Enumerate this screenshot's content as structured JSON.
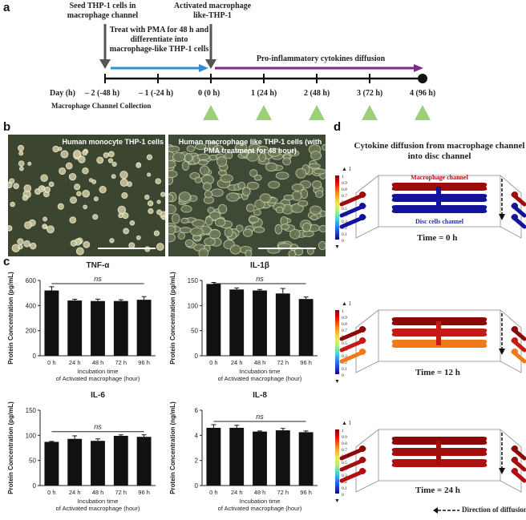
{
  "panels": {
    "a": "a",
    "b": "b",
    "c": "c",
    "d": "d"
  },
  "timeline": {
    "seed_label": "Seed THP-1 cells in macrophage channel",
    "activated_label": "Activated macrophage like-THP-1",
    "pma_label": "Treat with PMA for 48 h and differentiate into macrophage-like THP-1 cells",
    "diffusion_label": "Pro-inflammatory cytokines diffusion",
    "day_axis_label": "Day (h)",
    "ticks": [
      "– 2 (-48 h)",
      "– 1 (-24 h)",
      "0 (0 h)",
      "1 (24 h)",
      "2 (48 h)",
      "3 (72 h)",
      "4 (96 h)"
    ],
    "collection_label": "Macrophage Channel Collection",
    "colors": {
      "pma_arrow": "#2f8fd0",
      "diffusion_arrow": "#7d2a8c",
      "collection_triangle": "#9ccf7a"
    }
  },
  "micrographs": {
    "left_label": "Human monocyte THP-1 cells",
    "right_label": "Human macrophage like THP-1 cells (with PMA treatment for 48 hour)"
  },
  "chart_data": [
    {
      "type": "bar",
      "title": "TNF-α",
      "ylabel": "Protein Concentration (pg/mL)",
      "xlabel": "Incubation time of Activated macrophage (hour)",
      "categories": [
        "0 h",
        "24 h",
        "48 h",
        "72 h",
        "96 h"
      ],
      "values": [
        520,
        440,
        436,
        436,
        446
      ],
      "errors": [
        30,
        10,
        15,
        10,
        25
      ],
      "ylim": [
        0,
        600
      ],
      "yticks": [
        "0",
        "200",
        "400",
        "600"
      ],
      "annotation": "ns"
    },
    {
      "type": "bar",
      "title": "IL-1β",
      "ylabel": "Protein Concentration (pg/mL)",
      "xlabel": "Incubation time of Activated macrophage (hour)",
      "categories": [
        "0 h",
        "24 h",
        "48 h",
        "72 h",
        "96 h"
      ],
      "values": [
        143,
        132,
        130,
        124,
        113
      ],
      "errors": [
        3,
        3,
        2,
        10,
        4
      ],
      "ylim": [
        0,
        150
      ],
      "yticks": [
        "0",
        "50",
        "100",
        "150"
      ],
      "annotation": "ns"
    },
    {
      "type": "bar",
      "title": "IL-6",
      "ylabel": "Protein Concentration (pg/mL)",
      "xlabel": "Incubation time of Activated macrophage (hour)",
      "categories": [
        "0 h",
        "24 h",
        "48 h",
        "72 h",
        "96 h"
      ],
      "values": [
        87,
        93,
        89,
        99,
        97
      ],
      "errors": [
        1,
        6,
        4,
        2,
        4
      ],
      "ylim": [
        0,
        150
      ],
      "yticks": [
        "0",
        "50",
        "100",
        "150"
      ],
      "annotation": "ns"
    },
    {
      "type": "bar",
      "title": "IL-8",
      "ylabel": "Protein Concentration (ng/mL)",
      "xlabel": "Incubation time of Activated macrophage (hour)",
      "categories": [
        "0 h",
        "24 h",
        "48 h",
        "72 h",
        "96 h"
      ],
      "values": [
        4.6,
        4.6,
        4.3,
        4.4,
        4.25
      ],
      "errors": [
        0.25,
        0.2,
        0.05,
        0.15,
        0.1
      ],
      "ylim": [
        0,
        6
      ],
      "yticks": [
        "0",
        "2",
        "4",
        "6"
      ],
      "annotation": "ns"
    }
  ],
  "simulation": {
    "title": "Cytokine diffusion from macrophage channel into disc channel",
    "macrophage_channel_label": "Macrophage channel",
    "disc_channel_label": "Disc cells channel",
    "colorbar_top": "1",
    "colorbar_ticks": [
      "1",
      "0.9",
      "0.8",
      "0.7",
      "0.6",
      "0.5",
      "0.4",
      "0.3",
      "0.2",
      "0.1",
      "0"
    ],
    "frames": [
      {
        "time_label": "Time = 0 h",
        "top_color": "#9e0b0b",
        "mid_color": "#12129b",
        "bot_color": "#12129b"
      },
      {
        "time_label": "Time = 12 h",
        "top_color": "#8a0808",
        "mid_color": "#c81a14",
        "bot_color": "#f07a1a"
      },
      {
        "time_label": "Time = 24 h",
        "top_color": "#8a0808",
        "mid_color": "#a20e0e",
        "bot_color": "#b21010"
      }
    ],
    "legend_label": "Direction of diffusion"
  }
}
